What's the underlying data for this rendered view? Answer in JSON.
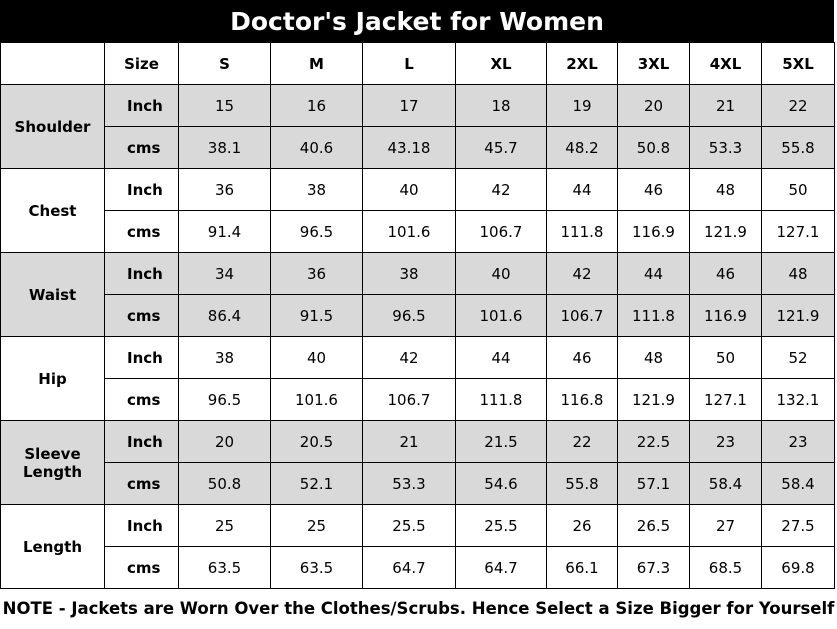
{
  "title": "Doctor's Jacket for Women",
  "header": {
    "size_label": "Size",
    "sizes": [
      "S",
      "M",
      "L",
      "XL",
      "2XL",
      "3XL",
      "4XL",
      "5XL"
    ]
  },
  "groups": [
    {
      "name": "Shoulder",
      "rows": [
        {
          "unit": "Inch",
          "values": [
            15,
            16,
            17,
            18,
            19,
            20,
            21,
            22
          ]
        },
        {
          "unit": "cms",
          "values": [
            38.1,
            40.6,
            43.18,
            45.7,
            48.2,
            50.8,
            53.3,
            55.8
          ]
        }
      ]
    },
    {
      "name": "Chest",
      "rows": [
        {
          "unit": "Inch",
          "values": [
            36,
            38,
            40,
            42,
            44,
            46,
            48,
            50
          ]
        },
        {
          "unit": "cms",
          "values": [
            91.4,
            96.5,
            101.6,
            106.7,
            111.8,
            116.9,
            121.9,
            127.1
          ]
        }
      ]
    },
    {
      "name": "Waist",
      "rows": [
        {
          "unit": "Inch",
          "values": [
            34,
            36,
            38,
            40,
            42,
            44,
            46,
            48
          ]
        },
        {
          "unit": "cms",
          "values": [
            86.4,
            91.5,
            96.5,
            101.6,
            106.7,
            111.8,
            116.9,
            121.9
          ]
        }
      ]
    },
    {
      "name": "Hip",
      "rows": [
        {
          "unit": "Inch",
          "values": [
            38,
            40,
            42,
            44,
            46,
            48,
            50,
            52
          ]
        },
        {
          "unit": "cms",
          "values": [
            96.5,
            101.6,
            106.7,
            111.8,
            116.8,
            121.9,
            127.1,
            132.1
          ]
        }
      ]
    },
    {
      "name": "Sleeve Length",
      "rows": [
        {
          "unit": "Inch",
          "values": [
            20,
            20.5,
            21,
            21.5,
            22,
            22.5,
            23,
            23
          ]
        },
        {
          "unit": "cms",
          "values": [
            50.8,
            52.1,
            53.3,
            54.6,
            55.8,
            57.1,
            58.4,
            58.4
          ]
        }
      ]
    },
    {
      "name": "Length",
      "rows": [
        {
          "unit": "Inch",
          "values": [
            25,
            25,
            25.5,
            25.5,
            26,
            26.5,
            27,
            27.5
          ]
        },
        {
          "unit": "cms",
          "values": [
            63.5,
            63.5,
            64.7,
            64.7,
            66.1,
            67.3,
            68.5,
            69.8
          ]
        }
      ]
    }
  ],
  "note": "NOTE - Jackets are Worn Over the Clothes/Scrubs. Hence Select a Size Bigger for Yourself"
}
